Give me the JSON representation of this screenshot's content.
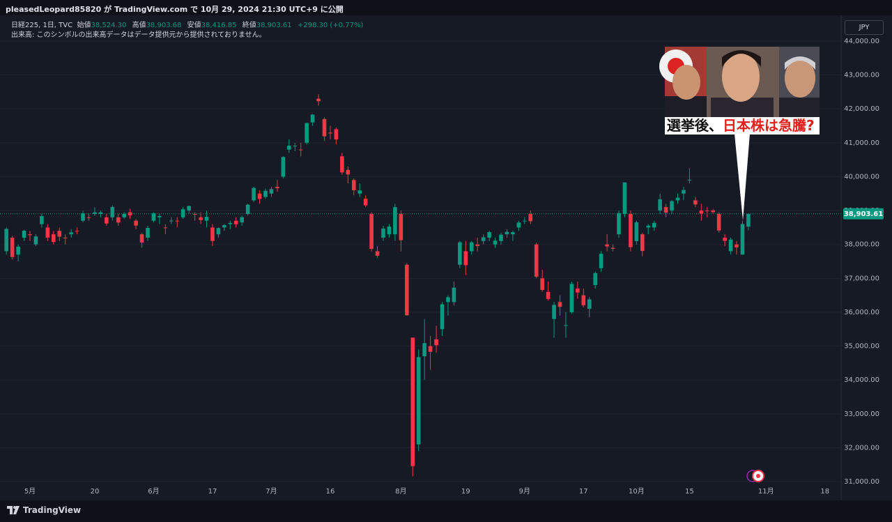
{
  "header": {
    "published": "pleasedLeopard85820 が TradingView.com で 10月 29, 2024 21:30 UTC+9 に公開"
  },
  "footer": {
    "brand": "TradingView"
  },
  "thumbnail": {
    "caption_plain": "選挙後、",
    "caption_red": "日本株は急騰?"
  },
  "chart_data": {
    "type": "candlestick",
    "legend": {
      "symbol": "日経225, 1日, TVC",
      "items": [
        {
          "label": "始値",
          "value": "38,524.30"
        },
        {
          "label": "高値",
          "value": "38,903.68"
        },
        {
          "label": "安値",
          "value": "38,416.85"
        },
        {
          "label": "終値",
          "value": "38,903.61"
        }
      ],
      "change": "+298.30 (+0.77%)",
      "volume_note": "出来高: このシンボルの出来高データはデータ提供元から提供されておりません。"
    },
    "currency": "JPY",
    "colors": {
      "up": "#089981",
      "down": "#f23645"
    },
    "categories": [
      null,
      null,
      null,
      null,
      "5月",
      null,
      null,
      null,
      null,
      null,
      null,
      null,
      null,
      null,
      null,
      "20",
      null,
      null,
      null,
      null,
      null,
      null,
      null,
      null,
      null,
      "6月",
      null,
      null,
      null,
      null,
      null,
      null,
      null,
      null,
      null,
      "17",
      null,
      null,
      null,
      null,
      null,
      null,
      null,
      null,
      null,
      "7月",
      null,
      null,
      null,
      null,
      null,
      null,
      null,
      null,
      null,
      "16",
      null,
      null,
      null,
      null,
      null,
      null,
      null,
      null,
      null,
      null,
      null,
      "8月",
      null,
      null,
      null,
      null,
      null,
      null,
      null,
      null,
      null,
      null,
      "19",
      null,
      null,
      null,
      null,
      null,
      null,
      null,
      null,
      null,
      "9月",
      null,
      null,
      null,
      null,
      null,
      null,
      null,
      null,
      null,
      "17",
      null,
      null,
      null,
      null,
      null,
      null,
      null,
      null,
      "10月",
      null,
      null,
      null,
      null,
      null,
      null,
      null,
      null,
      "15",
      null,
      null,
      null,
      null,
      null,
      null,
      null,
      null,
      null,
      null,
      null,
      null,
      "11月",
      null,
      null,
      null,
      null,
      null,
      null,
      null,
      null,
      null,
      "18"
    ],
    "open": [
      37800,
      38200,
      37700,
      38200,
      38300,
      38000,
      38600,
      38500,
      38300,
      38400,
      38200,
      38300,
      38400,
      38700,
      38800,
      38900,
      38900,
      38800,
      38800,
      38800,
      38800,
      38950,
      38700,
      38300,
      38200,
      38700,
      38800,
      38500,
      38700,
      38700,
      38800,
      39000,
      38900,
      38800,
      38700,
      38500,
      38300,
      38500,
      38600,
      38700,
      38650,
      38900,
      39300,
      39500,
      39400,
      39500,
      39700,
      40000,
      40800,
      40900,
      40800,
      41000,
      41600,
      42300,
      41700,
      41300,
      41400,
      40600,
      40200,
      39900,
      39500,
      39350,
      38900,
      37800,
      38200,
      38300,
      38300,
      38900,
      37400,
      35250,
      32100,
      34700,
      35000,
      35200,
      35500,
      36300,
      36300,
      37400,
      37800,
      37800,
      38000,
      38100,
      38200,
      38000,
      38100,
      38300,
      38300,
      38500,
      38700,
      38900,
      38000,
      37000,
      36600,
      35800,
      36300,
      35600,
      36000,
      36700,
      36500,
      36100,
      36800,
      37300,
      38000,
      37900,
      38300,
      38900,
      38900,
      38100,
      38300,
      38500,
      38500,
      39000,
      39100,
      39000,
      39300,
      39500,
      39900,
      39300,
      39000,
      39000,
      39000,
      38900,
      38200,
      37800,
      38000,
      37700,
      38524.3,
      null,
      null,
      null,
      null,
      null,
      null,
      null,
      null,
      null,
      null,
      null,
      null,
      null
    ],
    "high": [
      38500,
      38250,
      38000,
      38430,
      38400,
      38300,
      38900,
      38600,
      38400,
      38500,
      38300,
      38450,
      38500,
      39000,
      38900,
      39100,
      39000,
      38900,
      39150,
      38900,
      38950,
      39050,
      38750,
      38350,
      38550,
      38950,
      38900,
      38600,
      38800,
      38800,
      39100,
      39150,
      38950,
      38950,
      39000,
      38600,
      38500,
      38600,
      38700,
      38800,
      38850,
      39200,
      39700,
      39600,
      39650,
      39700,
      39900,
      40600,
      41100,
      41000,
      41000,
      41600,
      41850,
      42426,
      41750,
      41500,
      41450,
      40700,
      40300,
      39950,
      39800,
      39450,
      38950,
      37950,
      38550,
      38600,
      39200,
      39000,
      37450,
      35250,
      34900,
      35800,
      35300,
      35600,
      36300,
      36500,
      36900,
      38100,
      38100,
      38100,
      38200,
      38300,
      38400,
      38200,
      38350,
      38450,
      38400,
      38700,
      38800,
      39000,
      38050,
      37250,
      36900,
      36300,
      36500,
      36000,
      36900,
      36900,
      36700,
      36450,
      37200,
      37800,
      38300,
      38000,
      39000,
      39830,
      39000,
      38700,
      38350,
      38600,
      38700,
      39500,
      39200,
      39300,
      39500,
      39700,
      40250,
      39400,
      39200,
      39100,
      39050,
      38950,
      38300,
      38200,
      38100,
      38700,
      38903.68,
      null,
      null,
      null,
      null,
      null,
      null,
      null,
      null,
      null,
      null,
      null,
      null,
      null
    ],
    "low": [
      37700,
      37550,
      37500,
      38100,
      38100,
      37950,
      38500,
      38100,
      38000,
      38100,
      38000,
      38200,
      38300,
      38650,
      38700,
      38850,
      38800,
      38550,
      38700,
      38550,
      38750,
      38750,
      38450,
      37900,
      38100,
      38650,
      38600,
      38300,
      38600,
      38500,
      38750,
      38900,
      38700,
      38600,
      38500,
      37950,
      38200,
      38400,
      38450,
      38500,
      38550,
      38850,
      39250,
      39200,
      39350,
      39400,
      39550,
      39950,
      40700,
      40750,
      40600,
      40950,
      41500,
      42100,
      41050,
      41100,
      40950,
      40050,
      39800,
      39450,
      39400,
      39100,
      37800,
      37600,
      38100,
      38200,
      38100,
      37800,
      35900,
      31156,
      31900,
      34000,
      34300,
      34800,
      35300,
      35900,
      36200,
      37300,
      37100,
      37700,
      37800,
      38000,
      38100,
      37900,
      38000,
      38200,
      38100,
      38400,
      38600,
      38600,
      37000,
      36600,
      36350,
      35250,
      35900,
      35250,
      35950,
      36400,
      36150,
      35850,
      36700,
      37200,
      37800,
      37800,
      38200,
      38800,
      37800,
      38000,
      37650,
      38300,
      38400,
      38900,
      38800,
      38900,
      39200,
      39300,
      39800,
      39100,
      38700,
      38800,
      38900,
      38350,
      37950,
      37700,
      37700,
      37700,
      38416.85,
      null,
      null,
      null,
      null,
      null,
      null,
      null,
      null,
      null,
      null,
      null,
      null,
      null
    ],
    "close": [
      38460,
      37628,
      37934,
      38405,
      38274,
      38236,
      38835,
      38202,
      38073,
      38229,
      38179,
      38356,
      38385,
      38920,
      38787,
      38946,
      38947,
      38617,
      39103,
      38646,
      38900,
      38855,
      38556,
      38054,
      38488,
      38923,
      38837,
      38490,
      38703,
      38683,
      39038,
      39134,
      38877,
      38720,
      38815,
      38102,
      38482,
      38570,
      38633,
      38596,
      38804,
      39173,
      39667,
      39341,
      39583,
      39631,
      39658,
      40580,
      40913,
      40912,
      40780,
      41580,
      41831,
      42224,
      41190,
      41275,
      41097,
      40126,
      40063,
      39599,
      39594,
      39154,
      37869,
      37667,
      38468,
      38525,
      39101,
      38126,
      35909,
      31458,
      34675,
      35089,
      34831,
      35025,
      36232,
      36442,
      36726,
      38062,
      37388,
      38062,
      37951,
      38211,
      38364,
      38110,
      38288,
      38371,
      38362,
      38647,
      38700,
      38686,
      37047,
      36657,
      36391,
      36215,
      36159,
      35619,
      36833,
      36581,
      36203,
      36380,
      37155,
      37723,
      37940,
      37870,
      38925,
      39829,
      37919,
      38651,
      37808,
      38552,
      38635,
      39332,
      38937,
      39277,
      39380,
      39605,
      39910,
      39180,
      38911,
      38981,
      38954,
      38411,
      38104,
      38143,
      37913,
      38605,
      38903.61,
      null,
      null,
      null,
      null,
      null,
      null,
      null,
      null,
      null,
      null,
      null,
      null,
      null
    ],
    "ylim": [
      30550,
      44760
    ],
    "yticks": [
      {
        "value": 31000,
        "label": "31,000.00"
      },
      {
        "value": 32000,
        "label": "32,000.00"
      },
      {
        "value": 33000,
        "label": "33,000.00"
      },
      {
        "value": 34000,
        "label": "34,000.00"
      },
      {
        "value": 35000,
        "label": "35,000.00"
      },
      {
        "value": 36000,
        "label": "36,000.00"
      },
      {
        "value": 37000,
        "label": "37,000.00"
      },
      {
        "value": 38000,
        "label": "38,000.00"
      },
      {
        "value": 39000,
        "label": "39,000.00"
      },
      {
        "value": 40000,
        "label": "40,000.00"
      },
      {
        "value": 41000,
        "label": "41,000.00"
      },
      {
        "value": 42000,
        "label": "42,000.00"
      },
      {
        "value": 43000,
        "label": "43,000.00"
      },
      {
        "value": 44000,
        "label": "44,000.00"
      }
    ],
    "last_price": {
      "value": 38903.61,
      "label": "38,903.61"
    },
    "grid": true
  }
}
